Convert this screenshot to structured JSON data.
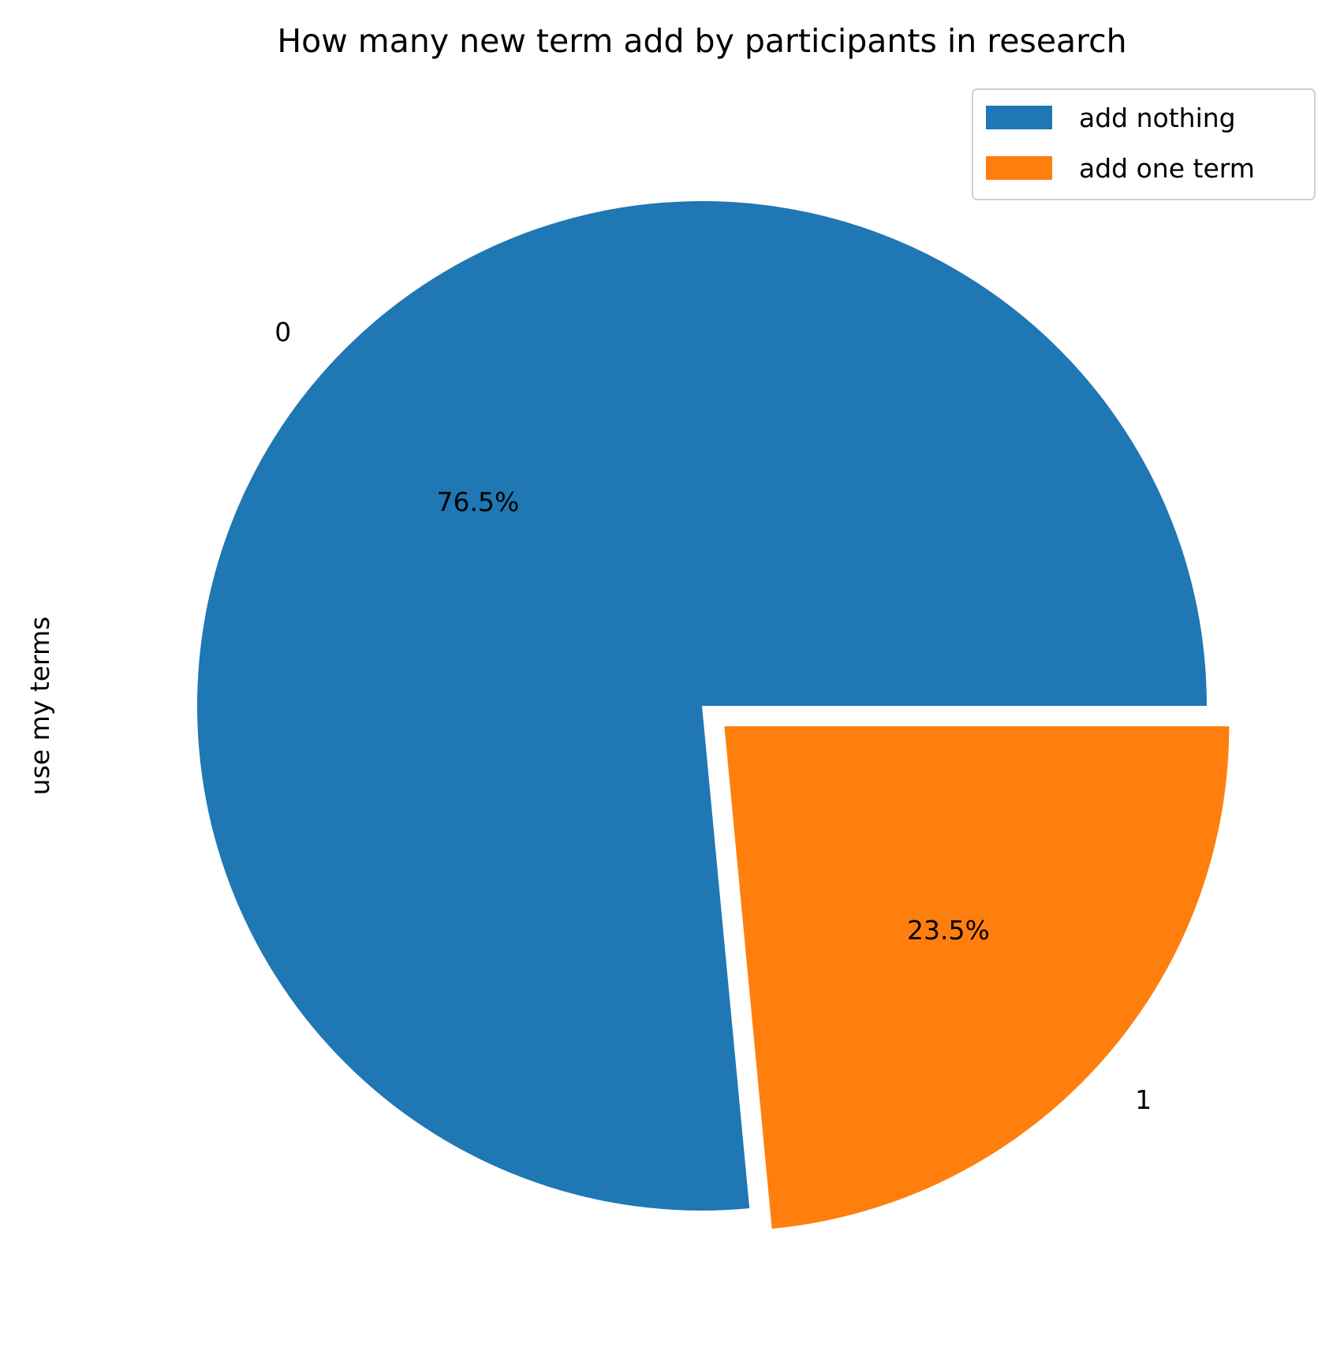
{
  "chart_data": {
    "type": "pie",
    "title": "How many new term add by participants in research",
    "ylabel": "use my terms",
    "labels": [
      "0",
      "1"
    ],
    "values": [
      76.5,
      23.5
    ],
    "pct_labels": [
      "76.5%",
      "23.5%"
    ],
    "legend": [
      "add nothing",
      "add one term"
    ],
    "colors": [
      "#1f77b4",
      "#ff7f0e"
    ],
    "explode": [
      0,
      0.06
    ],
    "start_angle": 0,
    "direction": "counterclockwise",
    "legend_position": "top-right"
  }
}
